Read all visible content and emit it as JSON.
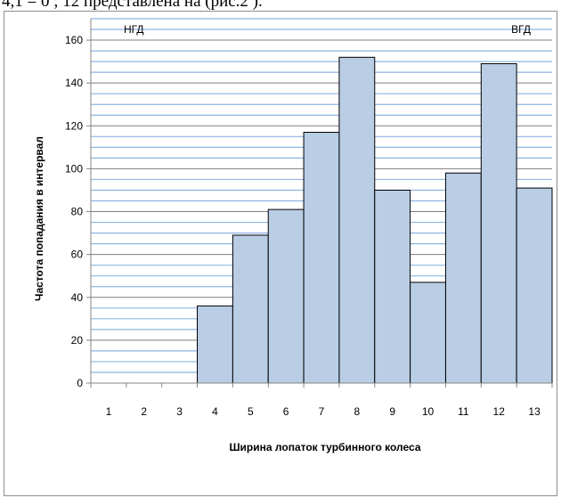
{
  "header_fragment": "4,1 = 0 ; 12  представлена  на (рис.2 ).",
  "chart_data": {
    "type": "bar",
    "categories": [
      "1",
      "2",
      "3",
      "4",
      "5",
      "6",
      "7",
      "8",
      "9",
      "10",
      "11",
      "12",
      "13"
    ],
    "values": [
      0,
      0,
      0,
      36,
      69,
      81,
      117,
      152,
      90,
      47,
      98,
      149,
      91
    ],
    "title": "",
    "xlabel": "Ширина лопаток турбинного колеса",
    "ylabel": "Частота попадания в интервал",
    "ylim": [
      0,
      170
    ],
    "yticks": [
      0,
      20,
      40,
      60,
      80,
      100,
      120,
      140,
      160
    ],
    "grid": true,
    "annotations": [
      {
        "text": "НГД",
        "position": "top-left"
      },
      {
        "text": "ВГД",
        "position": "top-right"
      }
    ],
    "colors": {
      "bar_fill": "#b9cde5",
      "bar_edge": "#000000",
      "grid_major": "#7f7f7f",
      "grid_minor": "#8eb4e3"
    }
  }
}
